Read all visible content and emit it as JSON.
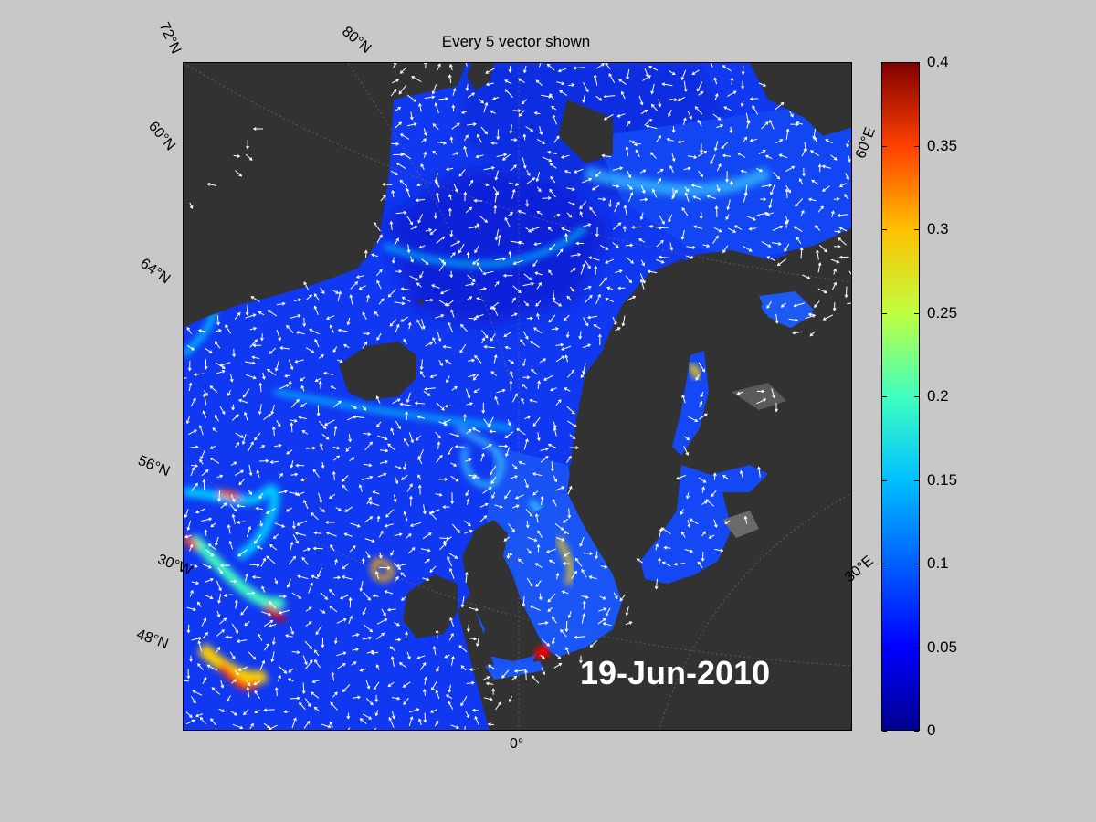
{
  "title": "Every 5 vector shown",
  "date": "19-Jun-2010",
  "lat_labels": [
    "72°N",
    "60°N",
    "64°N",
    "56°N",
    "48°N"
  ],
  "lon_labels": [
    "80°N",
    "30°W",
    "0°",
    "30°E",
    "60°E"
  ],
  "colorbar": {
    "ticks": [
      "0",
      "0.05",
      "0.1",
      "0.15",
      "0.2",
      "0.25",
      "0.3",
      "0.35",
      "0.4"
    ],
    "min": 0,
    "max": 0.4,
    "colormap": "jet"
  },
  "colors": {
    "background": "#c8c8c8",
    "land": "#323232",
    "ocean_low": "#0000ff",
    "ocean_high": "#800000",
    "vectors": "#ffffff"
  }
}
